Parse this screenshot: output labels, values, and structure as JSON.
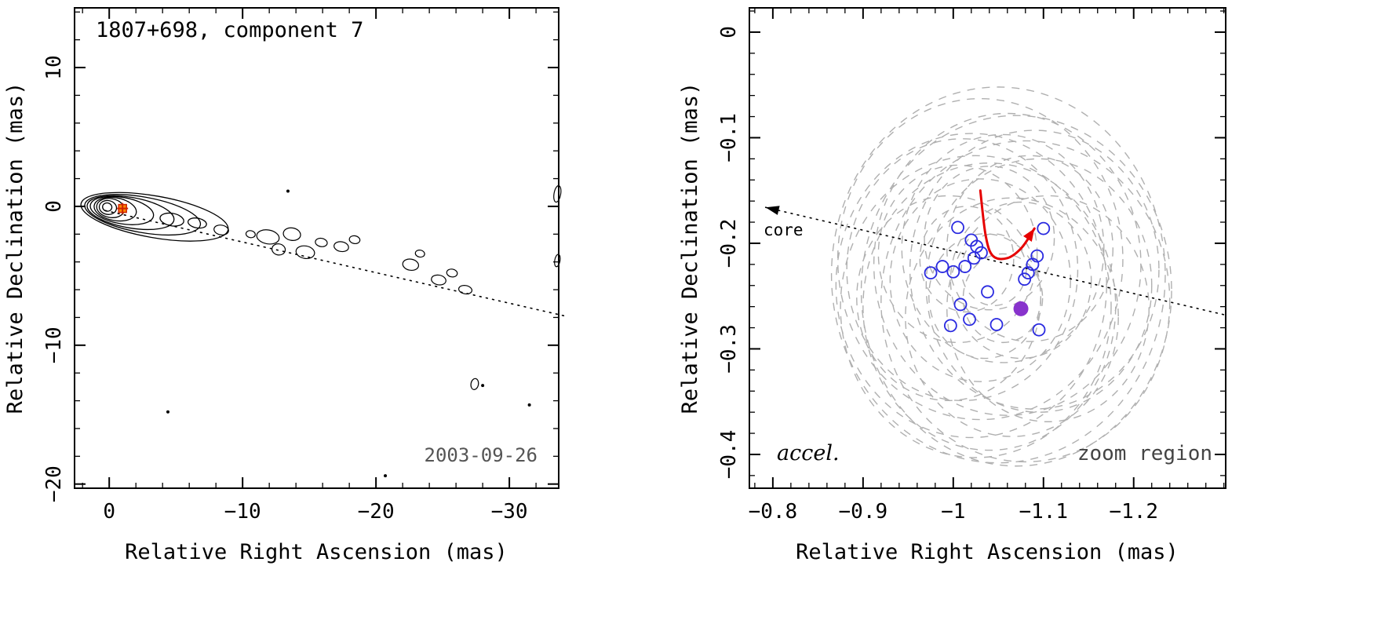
{
  "figure": {
    "background": "#ffffff",
    "axis_color": "#000000"
  },
  "chart_data": [
    {
      "panel": "left",
      "type": "contour",
      "title": "1807+698, component 7",
      "xlabel": "Relative Right Ascension (mas)",
      "ylabel": "Relative Declination (mas)",
      "xlim": [
        2.6,
        -33.7
      ],
      "ylim": [
        -20.3,
        14.3
      ],
      "xticks": [
        0,
        -10,
        -20,
        -30
      ],
      "xtick_labels": [
        "0",
        "−10",
        "−20",
        "−30"
      ],
      "xminor": 2,
      "yticks": [
        10,
        0,
        -10,
        -20
      ],
      "ytick_labels": [
        "10",
        "0",
        "−10",
        "−20"
      ],
      "yminor": 2,
      "date_label": "2003-09-26",
      "trajectory": {
        "x1": 0.3,
        "y1": -0.3,
        "x2": -34.2,
        "y2": -7.9
      },
      "marker": {
        "x": -1.0,
        "y": -0.15,
        "fill": "#ff8800",
        "edge": "#cc2200"
      },
      "contour_rot_deg": 10,
      "core_contours": [
        {
          "cx": 0.15,
          "cy": -0.05,
          "rx": 0.35,
          "ry": 0.3
        },
        {
          "cx": 0.1,
          "cy": -0.08,
          "rx": 0.65,
          "ry": 0.5
        },
        {
          "cx": -0.1,
          "cy": -0.12,
          "rx": 1.05,
          "ry": 0.68
        },
        {
          "cx": -0.45,
          "cy": -0.2,
          "rx": 1.6,
          "ry": 0.82
        },
        {
          "cx": -0.95,
          "cy": -0.3,
          "rx": 2.4,
          "ry": 0.95
        },
        {
          "cx": -1.6,
          "cy": -0.45,
          "rx": 3.3,
          "ry": 1.1
        },
        {
          "cx": -2.5,
          "cy": -0.6,
          "rx": 4.4,
          "ry": 1.28
        },
        {
          "cx": -3.4,
          "cy": -0.75,
          "rx": 5.6,
          "ry": 1.5
        },
        {
          "cx": -4.7,
          "cy": -0.95,
          "rx": 0.9,
          "ry": 0.45
        },
        {
          "cx": -6.6,
          "cy": -1.2,
          "rx": 0.7,
          "ry": 0.35
        }
      ],
      "blobs": [
        [
          -8.4,
          -1.7,
          0.55,
          0.35
        ],
        [
          -10.6,
          -2.0,
          0.35,
          0.25
        ],
        [
          -11.9,
          -2.2,
          0.85,
          0.5
        ],
        [
          -12.7,
          -3.1,
          0.5,
          0.4
        ],
        [
          -13.7,
          -2.0,
          0.65,
          0.45
        ],
        [
          -14.7,
          -3.3,
          0.7,
          0.45
        ],
        [
          -15.9,
          -2.6,
          0.45,
          0.3
        ],
        [
          -17.4,
          -2.9,
          0.55,
          0.35
        ],
        [
          -18.4,
          -2.4,
          0.4,
          0.28
        ],
        [
          -22.6,
          -4.2,
          0.6,
          0.4
        ],
        [
          -23.3,
          -3.4,
          0.35,
          0.25
        ],
        [
          -24.7,
          -5.3,
          0.55,
          0.35
        ],
        [
          -25.7,
          -4.8,
          0.4,
          0.28
        ],
        [
          -26.7,
          -6.0,
          0.5,
          0.3
        ],
        [
          -27.4,
          -12.8,
          0.28,
          0.4
        ],
        [
          -33.6,
          0.9,
          0.25,
          0.6
        ],
        [
          -33.6,
          -3.9,
          0.2,
          0.45
        ]
      ],
      "dots": [
        [
          -13.4,
          1.1
        ],
        [
          -4.4,
          -14.8
        ],
        [
          -20.7,
          -19.4
        ],
        [
          -28.0,
          -12.9
        ],
        [
          -31.5,
          -14.3
        ]
      ]
    },
    {
      "panel": "right",
      "type": "scatter",
      "xlabel": "Relative Right Ascension (mas)",
      "ylabel": "Relative Declination (mas)",
      "xlim": [
        -0.774,
        -1.302
      ],
      "ylim": [
        -0.432,
        0.023
      ],
      "xticks": [
        -0.8,
        -0.9,
        -1.0,
        -1.1,
        -1.2
      ],
      "xtick_labels": [
        "−0.8",
        "−0.9",
        "−1",
        "−1.1",
        "−1.2"
      ],
      "xminor": 0.02,
      "yticks": [
        0,
        -0.1,
        -0.2,
        -0.3,
        -0.4
      ],
      "ytick_labels": [
        "0",
        "−0.1",
        "−0.2",
        "−0.3",
        "−0.4"
      ],
      "yminor": 0.02,
      "labels": {
        "core": "core",
        "accel": "accel.",
        "zoom_region": "zoom region"
      },
      "colors": {
        "points": "#2a2ae0",
        "filled_point": "#8833cc",
        "arrow": "#e60000",
        "ellipses": "#b0b0b0"
      },
      "points": [
        [
          -1.005,
          -0.185
        ],
        [
          -1.02,
          -0.197
        ],
        [
          -1.026,
          -0.203
        ],
        [
          -1.031,
          -0.209
        ],
        [
          -1.023,
          -0.214
        ],
        [
          -1.1,
          -0.186
        ],
        [
          -1.093,
          -0.212
        ],
        [
          -1.088,
          -0.22
        ],
        [
          -1.083,
          -0.228
        ],
        [
          -1.079,
          -0.234
        ],
        [
          -0.975,
          -0.228
        ],
        [
          -0.988,
          -0.222
        ],
        [
          -1.0,
          -0.227
        ],
        [
          -1.013,
          -0.222
        ],
        [
          -1.038,
          -0.246
        ],
        [
          -1.008,
          -0.258
        ],
        [
          -1.018,
          -0.272
        ],
        [
          -0.997,
          -0.278
        ],
        [
          -1.048,
          -0.277
        ],
        [
          -1.095,
          -0.282
        ]
      ],
      "filled_point": [
        -1.075,
        -0.262
      ],
      "error_ellipses": [
        [
          -1.05,
          -0.23,
          0.185,
          0.178
        ],
        [
          -1.07,
          -0.245,
          0.172,
          0.166
        ],
        [
          -1.03,
          -0.215,
          0.158,
          0.152
        ],
        [
          -1.06,
          -0.22,
          0.148,
          0.143
        ],
        [
          -1.02,
          -0.24,
          0.15,
          0.144
        ],
        [
          -1.08,
          -0.255,
          0.16,
          0.152
        ],
        [
          -1.04,
          -0.26,
          0.14,
          0.136
        ],
        [
          -1.01,
          -0.225,
          0.128,
          0.124
        ],
        [
          -1.09,
          -0.225,
          0.138,
          0.132
        ],
        [
          -1.03,
          -0.235,
          0.1,
          0.096
        ],
        [
          -1.055,
          -0.205,
          0.112,
          0.108
        ],
        [
          -1.025,
          -0.26,
          0.15,
          0.143
        ],
        [
          -1.095,
          -0.24,
          0.125,
          0.12
        ],
        [
          -1.005,
          -0.21,
          0.088,
          0.084
        ],
        [
          -1.065,
          -0.27,
          0.118,
          0.113
        ],
        [
          -1.04,
          -0.195,
          0.072,
          0.068
        ],
        [
          -1.035,
          -0.25,
          0.062,
          0.059
        ],
        [
          -1.075,
          -0.235,
          0.078,
          0.074
        ],
        [
          -1.015,
          -0.215,
          0.052,
          0.05
        ],
        [
          -1.055,
          -0.252,
          0.044,
          0.042
        ],
        [
          -1.085,
          -0.205,
          0.092,
          0.088
        ],
        [
          -0.995,
          -0.252,
          0.102,
          0.097
        ],
        [
          -1.105,
          -0.262,
          0.112,
          0.107
        ],
        [
          -1.045,
          -0.225,
          0.036,
          0.034
        ]
      ],
      "accel_arrow": [
        [
          -1.03,
          -0.15
        ],
        [
          -1.036,
          -0.193
        ],
        [
          -1.044,
          -0.212
        ],
        [
          -1.06,
          -0.214
        ],
        [
          -1.076,
          -0.204
        ],
        [
          -1.09,
          -0.186
        ]
      ],
      "core_line": {
        "x1": -0.792,
        "y1": -0.166,
        "x2": -1.302,
        "y2": -0.268
      }
    }
  ]
}
